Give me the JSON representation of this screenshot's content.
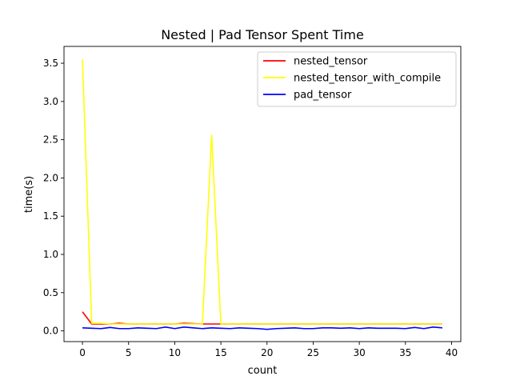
{
  "chart_data": {
    "type": "line",
    "title": "Nested | Pad Tensor Spent Time",
    "xlabel": "count",
    "ylabel": "time(s)",
    "xlim": [
      -2,
      41
    ],
    "ylim": [
      -0.14,
      3.72
    ],
    "xticks": [
      0,
      5,
      10,
      15,
      20,
      25,
      30,
      35,
      40
    ],
    "yticks": [
      0.0,
      0.5,
      1.0,
      1.5,
      2.0,
      2.5,
      3.0,
      3.5
    ],
    "xtick_labels": [
      "0",
      "5",
      "10",
      "15",
      "20",
      "25",
      "30",
      "35",
      "40"
    ],
    "ytick_labels": [
      "0.0",
      "0.5",
      "1.0",
      "1.5",
      "2.0",
      "2.5",
      "3.0",
      "3.5"
    ],
    "grid": false,
    "legend_position": "top-right",
    "x": [
      0,
      1,
      2,
      3,
      4,
      5,
      6,
      7,
      8,
      9,
      10,
      11,
      12,
      13,
      14,
      15,
      16,
      17,
      18,
      19,
      20,
      21,
      22,
      23,
      24,
      25,
      26,
      27,
      28,
      29,
      30,
      31,
      32,
      33,
      34,
      35,
      36,
      37,
      38,
      39
    ],
    "series": [
      {
        "name": "nested_tensor",
        "color": "#ff0000",
        "values": [
          0.25,
          0.09,
          0.09,
          0.09,
          0.1,
          0.09,
          0.09,
          0.09,
          0.09,
          0.09,
          0.09,
          0.1,
          0.095,
          0.09,
          0.09,
          0.09,
          0.09,
          0.09,
          0.09,
          0.09,
          0.09,
          0.09,
          0.09,
          0.09,
          0.09,
          0.09,
          0.09,
          0.09,
          0.09,
          0.09,
          0.09,
          0.09,
          0.09,
          0.09,
          0.09,
          0.09,
          0.09,
          0.09,
          0.09,
          0.09
        ]
      },
      {
        "name": "nested_tensor_with_compile",
        "color": "#ffff00",
        "values": [
          3.55,
          0.1,
          0.1,
          0.09,
          0.09,
          0.09,
          0.09,
          0.09,
          0.09,
          0.09,
          0.09,
          0.09,
          0.09,
          0.09,
          2.56,
          0.09,
          0.09,
          0.09,
          0.09,
          0.09,
          0.09,
          0.09,
          0.09,
          0.09,
          0.09,
          0.09,
          0.09,
          0.09,
          0.09,
          0.09,
          0.09,
          0.09,
          0.09,
          0.09,
          0.09,
          0.09,
          0.09,
          0.09,
          0.09,
          0.09
        ]
      },
      {
        "name": "pad_tensor",
        "color": "#0000ff",
        "values": [
          0.04,
          0.035,
          0.03,
          0.045,
          0.03,
          0.03,
          0.04,
          0.035,
          0.03,
          0.05,
          0.03,
          0.05,
          0.04,
          0.03,
          0.04,
          0.035,
          0.03,
          0.04,
          0.035,
          0.03,
          0.02,
          0.03,
          0.035,
          0.04,
          0.03,
          0.03,
          0.04,
          0.04,
          0.035,
          0.04,
          0.03,
          0.04,
          0.035,
          0.035,
          0.035,
          0.03,
          0.045,
          0.03,
          0.05,
          0.04
        ]
      }
    ]
  }
}
